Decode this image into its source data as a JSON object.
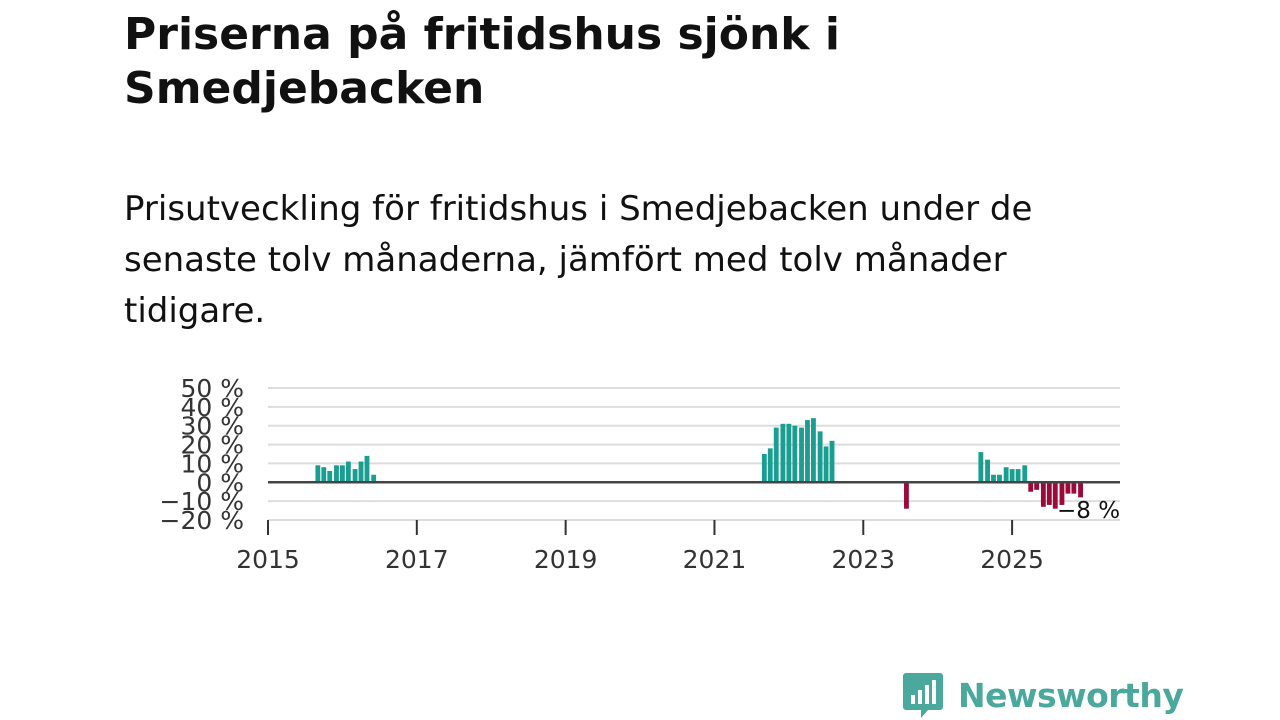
{
  "header": {
    "title": "Priserna på fritidshus sjönk i Smedjebacken",
    "subtitle": "Prisutveckling för fritidshus i Smedjebacken under de senaste tolv månaderna, jämfört med tolv månader tidigare."
  },
  "colors": {
    "positive": "#1a9e92",
    "negative": "#9b0a3a",
    "grid": "#dddddd",
    "zero_line": "#444444",
    "brand": "#4aa89c"
  },
  "chart_data": {
    "type": "bar",
    "title": "Priserna på fritidshus sjönk i Smedjebacken",
    "xlabel": "",
    "ylabel": "",
    "ylim": [
      -20,
      50
    ],
    "xlim": [
      2015,
      2026.45
    ],
    "grid": true,
    "y_ticks": [
      {
        "value": 50,
        "label": "50 %"
      },
      {
        "value": 40,
        "label": "40 %"
      },
      {
        "value": 30,
        "label": "30 %"
      },
      {
        "value": 20,
        "label": "20 %"
      },
      {
        "value": 10,
        "label": "10 %"
      },
      {
        "value": 0,
        "label": "0 %"
      },
      {
        "value": -10,
        "label": "−10 %"
      },
      {
        "value": -20,
        "label": "−20 %"
      }
    ],
    "x_ticks": [
      {
        "value": 2015,
        "label": "2015"
      },
      {
        "value": 2017,
        "label": "2017"
      },
      {
        "value": 2019,
        "label": "2019"
      },
      {
        "value": 2021,
        "label": "2021"
      },
      {
        "value": 2023,
        "label": "2023"
      },
      {
        "value": 2025,
        "label": "2025"
      }
    ],
    "series": [
      {
        "name": "Prisutveckling",
        "points": [
          {
            "x": 2015.67,
            "y": 9
          },
          {
            "x": 2015.75,
            "y": 8
          },
          {
            "x": 2015.83,
            "y": 6
          },
          {
            "x": 2015.92,
            "y": 9
          },
          {
            "x": 2016.0,
            "y": 9
          },
          {
            "x": 2016.08,
            "y": 11
          },
          {
            "x": 2016.17,
            "y": 7
          },
          {
            "x": 2016.25,
            "y": 11
          },
          {
            "x": 2016.33,
            "y": 14
          },
          {
            "x": 2016.42,
            "y": 4
          },
          {
            "x": 2021.67,
            "y": 15
          },
          {
            "x": 2021.75,
            "y": 18
          },
          {
            "x": 2021.83,
            "y": 29
          },
          {
            "x": 2021.92,
            "y": 31
          },
          {
            "x": 2022.0,
            "y": 31
          },
          {
            "x": 2022.08,
            "y": 30
          },
          {
            "x": 2022.17,
            "y": 29
          },
          {
            "x": 2022.25,
            "y": 33
          },
          {
            "x": 2022.33,
            "y": 34
          },
          {
            "x": 2022.42,
            "y": 27
          },
          {
            "x": 2022.5,
            "y": 19
          },
          {
            "x": 2022.58,
            "y": 22
          },
          {
            "x": 2023.58,
            "y": -14
          },
          {
            "x": 2024.58,
            "y": 16
          },
          {
            "x": 2024.67,
            "y": 12
          },
          {
            "x": 2024.75,
            "y": 4
          },
          {
            "x": 2024.83,
            "y": 4
          },
          {
            "x": 2024.92,
            "y": 8
          },
          {
            "x": 2025.0,
            "y": 7
          },
          {
            "x": 2025.08,
            "y": 7
          },
          {
            "x": 2025.17,
            "y": 9
          },
          {
            "x": 2025.25,
            "y": -5
          },
          {
            "x": 2025.33,
            "y": -4
          },
          {
            "x": 2025.42,
            "y": -13
          },
          {
            "x": 2025.5,
            "y": -12
          },
          {
            "x": 2025.58,
            "y": -14
          },
          {
            "x": 2025.67,
            "y": -12
          },
          {
            "x": 2025.75,
            "y": -6
          },
          {
            "x": 2025.83,
            "y": -6
          },
          {
            "x": 2025.92,
            "y": -8
          }
        ]
      }
    ],
    "annotations": [
      {
        "text": "−8 %",
        "x": 2025.92,
        "y": -8
      }
    ]
  },
  "brand": {
    "name": "Newsworthy",
    "icon": "bar-chart-speech-icon"
  }
}
